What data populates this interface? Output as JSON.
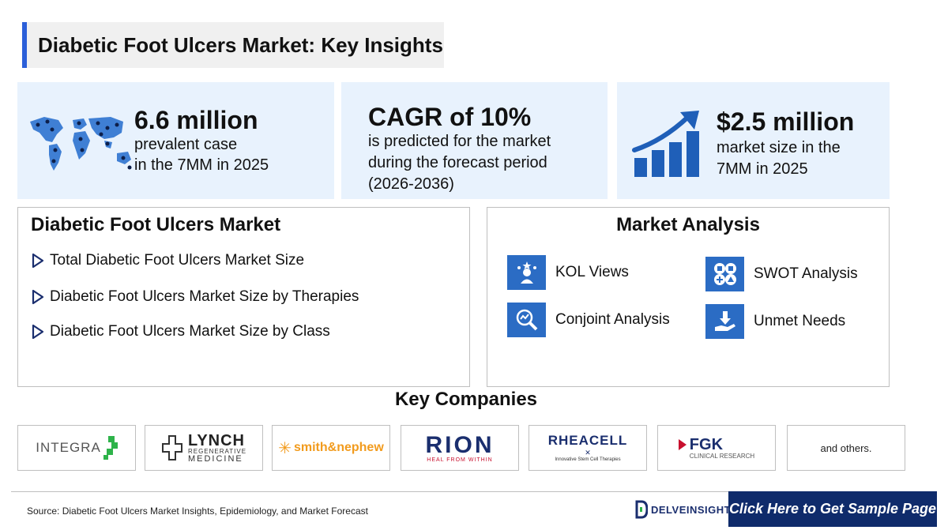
{
  "title": "Diabetic Foot Ulcers Market: Key Insights",
  "kpis": [
    {
      "big": "6.6 million",
      "line1": "prevalent case",
      "line2": "in the 7MM in 2025",
      "icon": "world-map-icon"
    },
    {
      "big": "CAGR of 10%",
      "line1": "is predicted for the market",
      "line2": "during the forecast period",
      "line3": "(2026-2036)"
    },
    {
      "big": "$2.5 million",
      "line1": "market size in the",
      "line2": "7MM in 2025",
      "icon": "growth-chart-icon"
    }
  ],
  "market_panel": {
    "title": "Diabetic Foot Ulcers Market",
    "items": [
      "Total Diabetic Foot Ulcers Market Size",
      "Diabetic Foot Ulcers Market Size by Therapies",
      "Diabetic Foot Ulcers Market Size by Class"
    ]
  },
  "analysis_panel": {
    "title": "Market Analysis",
    "items": [
      {
        "label": "KOL Views",
        "icon": "kol-icon"
      },
      {
        "label": "SWOT Analysis",
        "icon": "swot-icon"
      },
      {
        "label": "Conjoint Analysis",
        "icon": "conjoint-icon"
      },
      {
        "label": "Unmet Needs",
        "icon": "unmet-needs-icon"
      }
    ]
  },
  "key_companies": {
    "title": "Key Companies",
    "logos": {
      "integra": "INTEGRA",
      "lynch_1": "LYNCH",
      "lynch_2": "REGENERATIVE",
      "lynch_3": "MEDICINE",
      "smith": "smith&nephew",
      "rion_1": "RION",
      "rion_2": "HEAL FROM WITHIN",
      "rheacell_1": "RHEACELL",
      "rheacell_2": "Innovative Stem Cell Therapies",
      "fgk_1": "FGK",
      "fgk_2": "CLINICAL RESEARCH"
    },
    "others": "and others."
  },
  "footer": {
    "source": "Source: Diabetic Foot Ulcers Market Insights, Epidemiology, and Market Forecast",
    "brand": "DELVEINSIGHT",
    "cta": "Click Here to Get Sample Page"
  },
  "colors": {
    "accent": "#2b6cc4",
    "kpi_bg": "#e8f2fd",
    "cta_bg": "#0f2b6b",
    "orange": "#f29b1d",
    "green": "#2eb34a",
    "rion_red": "#c8102e"
  }
}
